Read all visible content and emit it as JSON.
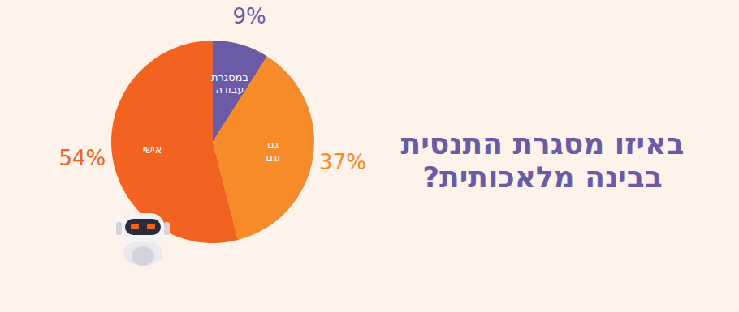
{
  "chart_data": {
    "type": "pie",
    "title": "באיזו מסגרת התנסית בבינה מלאכותית?",
    "categories": [
      "במסגרת עבודה",
      "גם וגם",
      "אישי"
    ],
    "values": [
      9,
      37,
      54
    ],
    "value_labels": [
      "9%",
      "37%",
      "54%"
    ],
    "colors": [
      "#6b5aa6",
      "#f78b2a",
      "#f26322"
    ],
    "data_labels": true
  }
}
